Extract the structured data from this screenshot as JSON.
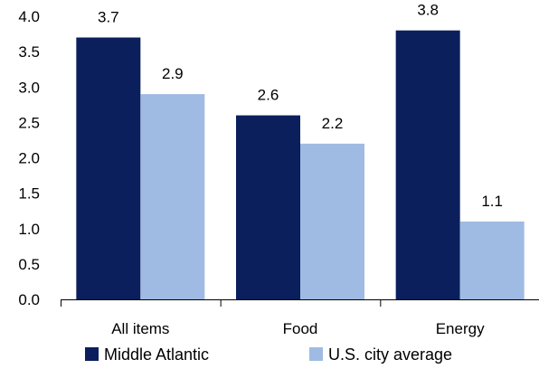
{
  "chart_data": {
    "type": "bar",
    "categories": [
      "All items",
      "Food",
      "Energy"
    ],
    "series": [
      {
        "name": "Middle Atlantic",
        "values": [
          3.7,
          2.6,
          3.8
        ],
        "color": "#0a1f5c"
      },
      {
        "name": "U.S. city average",
        "values": [
          2.9,
          2.2,
          1.1
        ],
        "color": "#9fbbe3"
      }
    ],
    "data_labels": [
      [
        "3.7",
        "2.6",
        "3.8"
      ],
      [
        "2.9",
        "2.2",
        "1.1"
      ]
    ],
    "yticks": [
      "0.0",
      "0.5",
      "1.0",
      "1.5",
      "2.0",
      "2.5",
      "3.0",
      "3.5",
      "4.0"
    ],
    "ylim": [
      0,
      4
    ],
    "grid": false,
    "legend": "bottom"
  }
}
